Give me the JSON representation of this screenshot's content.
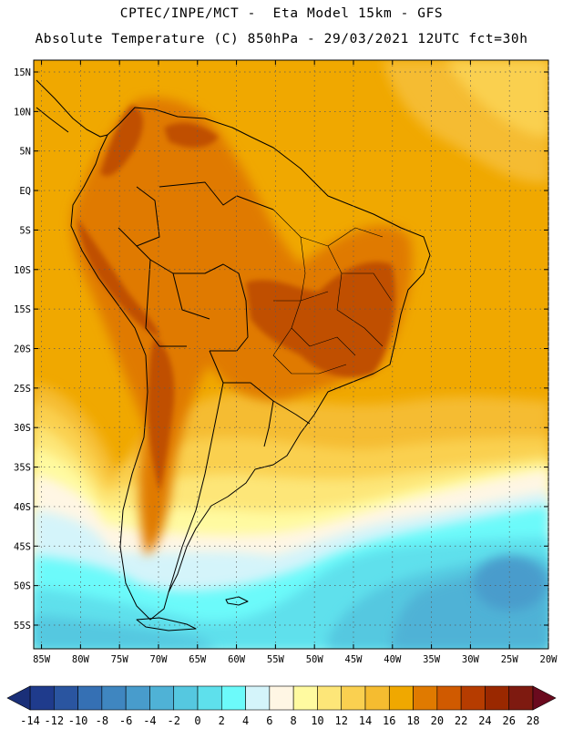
{
  "header": {
    "line1": "CPTEC/INPE/MCT -  Eta Model 15km - GFS",
    "line2": "Absolute Temperature (C) 850hPa - 29/03/2021 12UTC fct=30h"
  },
  "axes": {
    "lat_labels": [
      "15N",
      "10N",
      "5N",
      "EQ",
      "5S",
      "10S",
      "15S",
      "20S",
      "25S",
      "30S",
      "35S",
      "40S",
      "45S",
      "50S",
      "55S"
    ],
    "lat_values": [
      15,
      10,
      5,
      0,
      -5,
      -10,
      -15,
      -20,
      -25,
      -30,
      -35,
      -40,
      -45,
      -50,
      -55
    ],
    "lon_labels": [
      "85W",
      "80W",
      "75W",
      "70W",
      "65W",
      "60W",
      "55W",
      "50W",
      "45W",
      "40W",
      "35W",
      "30W",
      "25W",
      "20W"
    ],
    "lon_values": [
      -85,
      -80,
      -75,
      -70,
      -65,
      -60,
      -55,
      -50,
      -45,
      -40,
      -35,
      -30,
      -25,
      -20
    ],
    "lat_range": [
      -58,
      16.5
    ],
    "lon_range": [
      -86,
      -20
    ]
  },
  "colorbar": {
    "unit": "C",
    "labels": [
      "-14",
      "-12",
      "-10",
      "-8",
      "-6",
      "-4",
      "-2",
      "0",
      "2",
      "4",
      "6",
      "8",
      "10",
      "12",
      "14",
      "16",
      "18",
      "20",
      "22",
      "24",
      "26",
      "28"
    ],
    "colors": [
      "#1f3b8c",
      "#2a55a0",
      "#3570b4",
      "#3f86c0",
      "#489ccc",
      "#4fb2d6",
      "#55c8e0",
      "#5ee0ec",
      "#6cfafa",
      "#d4f4fa",
      "#fff6e4",
      "#fffaa0",
      "#fde678",
      "#fad050",
      "#f5bc30",
      "#f0a800",
      "#e07a00",
      "#d05a00",
      "#b63c00",
      "#9a2800",
      "#7e1a10"
    ],
    "under_color": "#1a2f78",
    "over_color": "#6a0a1e"
  },
  "palette": {
    "base": "#f0a800",
    "warm": "#e07a00",
    "hot": "#c05000",
    "cool_16": "#f5bc30",
    "cool_14": "#fad050",
    "cool_12": "#fde678",
    "cool_10": "#fffaa0",
    "cool_8": "#fff6e4",
    "cold_6": "#d4f4fa",
    "cold_4": "#6cfafa",
    "cold_2": "#5ee0ec",
    "cold_0": "#55c8e0",
    "cold_m2": "#4fb2d6",
    "cold_m4": "#489ccc"
  }
}
